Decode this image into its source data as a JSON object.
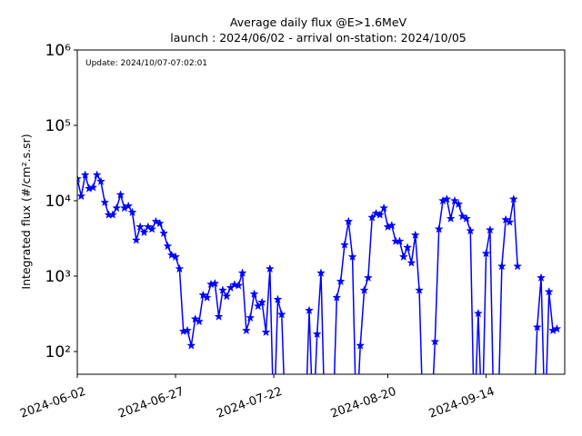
{
  "chart_data": {
    "type": "line",
    "title": "Average daily flux @E>1.6MeV",
    "subtitle": "launch : 2024/06/02 - arrival on-station: 2024/10/05",
    "annotation": "Update: 2024/10/07-07:02:01",
    "ylabel": "Integrated flux (#/cm².s.sr)",
    "log_y": true,
    "grid": false,
    "xlim": [
      "2024-06-02",
      "2024-10-04"
    ],
    "xticks": [
      "2024-06-02",
      "2024-06-27",
      "2024-07-22",
      "2024-08-20",
      "2024-09-14"
    ],
    "ylim": [
      50,
      1000000
    ],
    "yticks": [
      {
        "value": 100,
        "label": "10²"
      },
      {
        "value": 1000,
        "label": "10³"
      },
      {
        "value": 10000,
        "label": "10⁴"
      },
      {
        "value": 100000,
        "label": "10⁵"
      },
      {
        "value": 1000000,
        "label": "10⁶"
      }
    ],
    "x": [
      "2024-06-02",
      "2024-06-03",
      "2024-06-04",
      "2024-06-05",
      "2024-06-06",
      "2024-06-07",
      "2024-06-08",
      "2024-06-09",
      "2024-06-10",
      "2024-06-11",
      "2024-06-12",
      "2024-06-13",
      "2024-06-14",
      "2024-06-15",
      "2024-06-16",
      "2024-06-17",
      "2024-06-18",
      "2024-06-19",
      "2024-06-20",
      "2024-06-21",
      "2024-06-22",
      "2024-06-23",
      "2024-06-24",
      "2024-06-25",
      "2024-06-26",
      "2024-06-27",
      "2024-06-28",
      "2024-06-29",
      "2024-06-30",
      "2024-07-01",
      "2024-07-02",
      "2024-07-03",
      "2024-07-04",
      "2024-07-05",
      "2024-07-06",
      "2024-07-07",
      "2024-07-08",
      "2024-07-09",
      "2024-07-10",
      "2024-07-11",
      "2024-07-12",
      "2024-07-13",
      "2024-07-14",
      "2024-07-15",
      "2024-07-16",
      "2024-07-17",
      "2024-07-18",
      "2024-07-19",
      "2024-07-20",
      "2024-07-21",
      "2024-07-22",
      "2024-07-23",
      "2024-07-24",
      "2024-07-25",
      "2024-07-26",
      "2024-07-27",
      "2024-07-28",
      "2024-07-29",
      "2024-07-30",
      "2024-07-31",
      "2024-08-01",
      "2024-08-02",
      "2024-08-03",
      "2024-08-04",
      "2024-08-05",
      "2024-08-06",
      "2024-08-07",
      "2024-08-08",
      "2024-08-09",
      "2024-08-10",
      "2024-08-11",
      "2024-08-12",
      "2024-08-13",
      "2024-08-14",
      "2024-08-15",
      "2024-08-16",
      "2024-08-17",
      "2024-08-18",
      "2024-08-19",
      "2024-08-20",
      "2024-08-21",
      "2024-08-22",
      "2024-08-23",
      "2024-08-24",
      "2024-08-25",
      "2024-08-26",
      "2024-08-27",
      "2024-08-28",
      "2024-08-29",
      "2024-08-30",
      "2024-08-31",
      "2024-09-01",
      "2024-09-02",
      "2024-09-03",
      "2024-09-04",
      "2024-09-05",
      "2024-09-06",
      "2024-09-07",
      "2024-09-08",
      "2024-09-09",
      "2024-09-10",
      "2024-09-11",
      "2024-09-12",
      "2024-09-13",
      "2024-09-14",
      "2024-09-15",
      "2024-09-16",
      "2024-09-17",
      "2024-09-18",
      "2024-09-19",
      "2024-09-20",
      "2024-09-21",
      "2024-09-22",
      "2024-09-23",
      "2024-09-24",
      "2024-09-25",
      "2024-09-26",
      "2024-09-27",
      "2024-09-28",
      "2024-09-29",
      "2024-09-30",
      "2024-10-01",
      "2024-10-02"
    ],
    "series": [
      {
        "name": "flux",
        "color": "#0000ff",
        "values": [
          19500,
          11500,
          22000,
          14500,
          15000,
          22000,
          18000,
          9500,
          6500,
          6500,
          8000,
          12000,
          8000,
          8500,
          7000,
          3000,
          4500,
          3800,
          4500,
          4200,
          5300,
          5000,
          3700,
          2500,
          1900,
          1800,
          1250,
          185,
          190,
          120,
          270,
          250,
          560,
          520,
          780,
          800,
          290,
          650,
          540,
          700,
          770,
          750,
          1100,
          190,
          280,
          580,
          400,
          450,
          180,
          1250,
          10,
          490,
          310,
          10,
          null,
          null,
          null,
          null,
          10,
          350,
          10,
          170,
          1100,
          10,
          null,
          10,
          520,
          850,
          2600,
          5300,
          1800,
          10,
          120,
          650,
          950,
          6000,
          6800,
          6500,
          8000,
          4500,
          4700,
          2900,
          2900,
          1800,
          2400,
          1500,
          3500,
          650,
          10,
          null,
          10,
          135,
          4200,
          10000,
          10500,
          5800,
          10000,
          9000,
          6200,
          5800,
          4000,
          10,
          320,
          10,
          2000,
          4100,
          10,
          10,
          1350,
          5600,
          5200,
          10500,
          1350,
          null,
          null,
          null,
          10,
          210,
          950,
          10,
          620,
          190,
          200
        ]
      }
    ]
  }
}
